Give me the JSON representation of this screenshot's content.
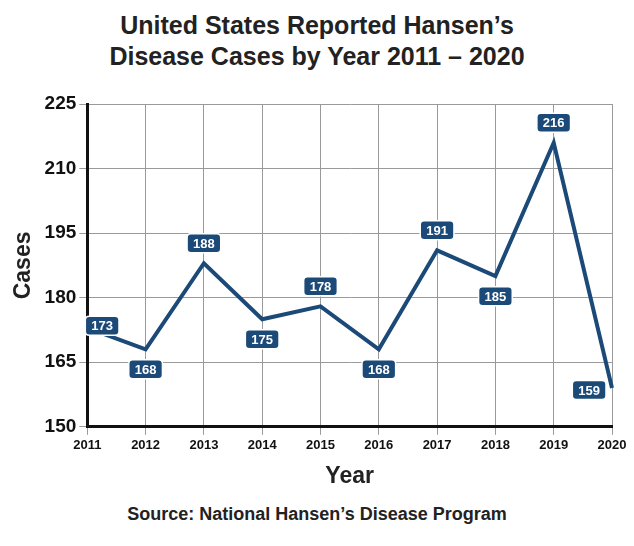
{
  "chart_data": {
    "type": "line",
    "title": "United States Reported Hansen’s Disease Cases by Year 2011 – 2020",
    "x_label": "Year",
    "y_label": "Cases",
    "categories": [
      "2011",
      "2012",
      "2013",
      "2014",
      "2015",
      "2016",
      "2017",
      "2018",
      "2019",
      "2020"
    ],
    "values": [
      173,
      168,
      188,
      175,
      178,
      168,
      191,
      185,
      216,
      159
    ],
    "color": "#1c4a78",
    "ylim": [
      150,
      225
    ],
    "yticks": [
      150,
      165,
      180,
      195,
      210,
      225
    ],
    "grid": true,
    "data_labels": true,
    "annotations": [
      "Source: National Hansen’s Disease Program"
    ]
  }
}
